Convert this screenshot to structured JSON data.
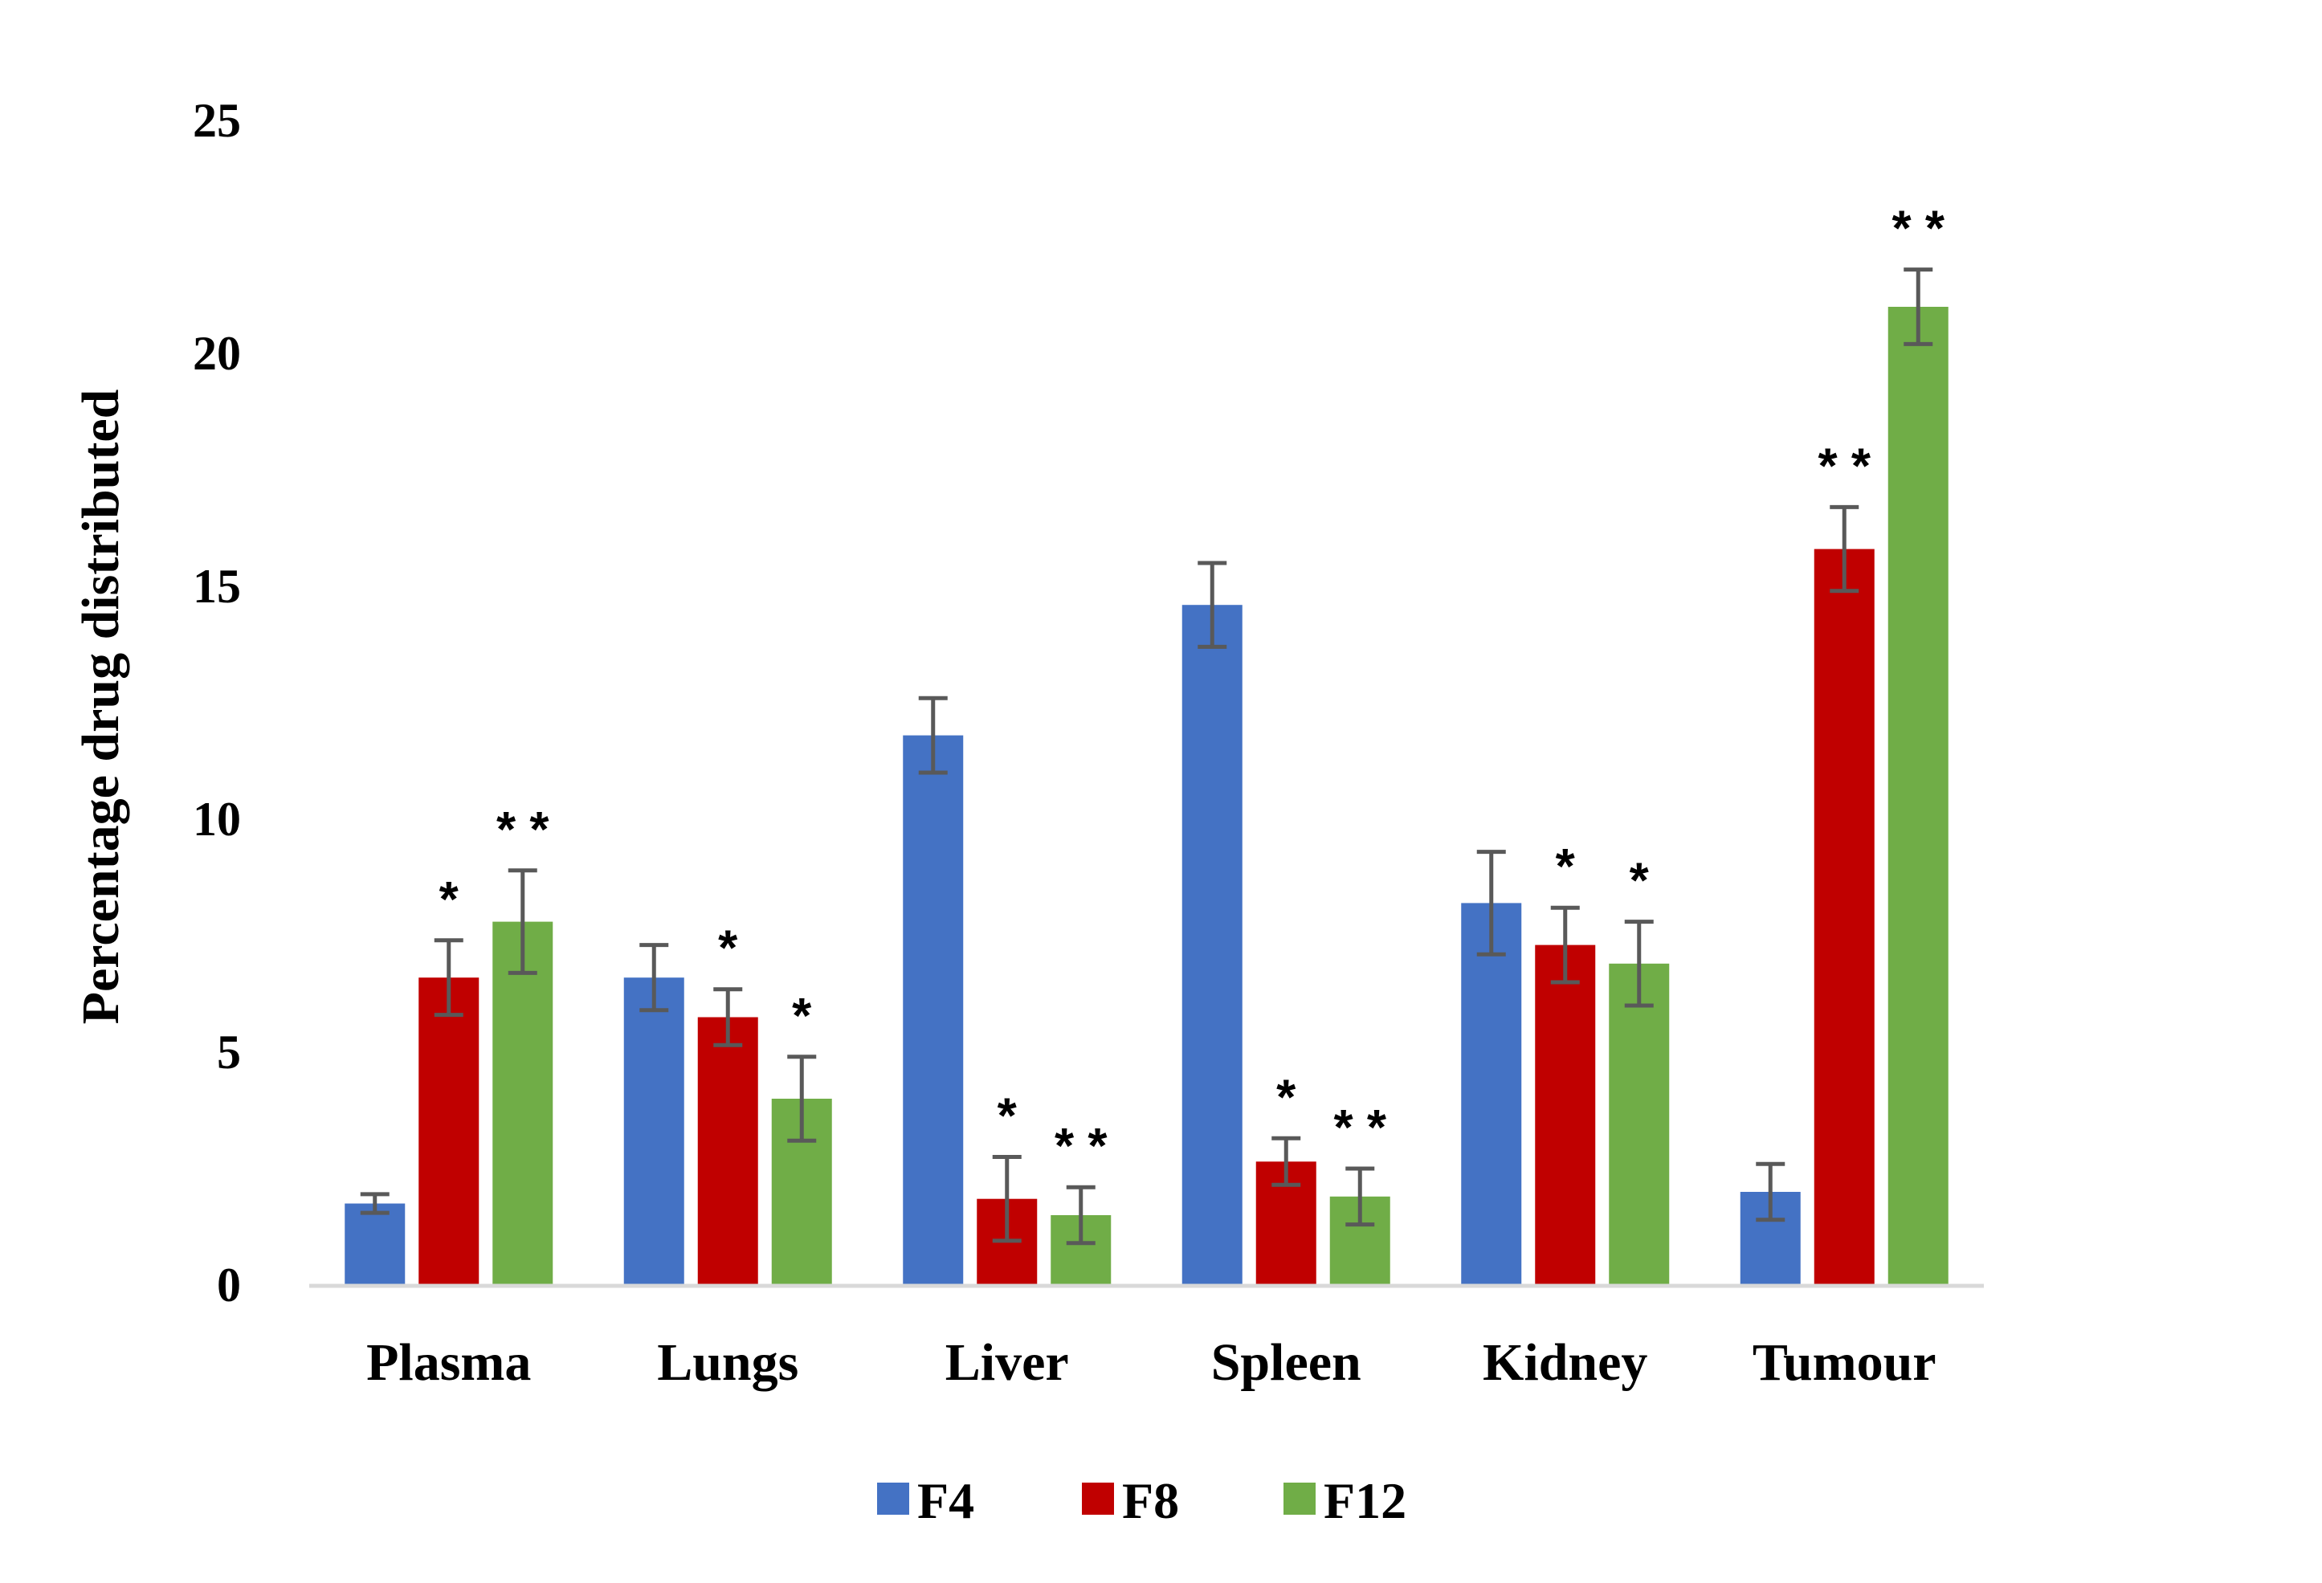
{
  "chart_data": {
    "type": "bar",
    "title": "",
    "xlabel": "",
    "ylabel": "Percentage drug distributed",
    "ylim": [
      0,
      25
    ],
    "yticks": [
      0,
      5,
      10,
      15,
      20,
      25
    ],
    "grid": false,
    "legend": "bottom",
    "categories": [
      "Plasma",
      "Lungs",
      "Liver",
      "Spleen",
      "Kidney",
      "Tumour"
    ],
    "series": [
      {
        "name": "F4",
        "color": "#4472C4",
        "values": [
          1.75,
          6.6,
          11.8,
          14.6,
          8.2,
          2.0
        ],
        "errors": [
          0.2,
          0.7,
          0.8,
          0.9,
          1.1,
          0.6
        ],
        "significance": [
          "",
          "",
          "",
          "",
          "",
          ""
        ]
      },
      {
        "name": "F8",
        "color": "#C00000",
        "values": [
          6.6,
          5.75,
          1.85,
          2.65,
          7.3,
          15.8
        ],
        "errors": [
          0.8,
          0.6,
          0.9,
          0.5,
          0.8,
          0.9
        ],
        "significance": [
          "*",
          "*",
          "*",
          "*",
          "*",
          "**"
        ]
      },
      {
        "name": "F12",
        "color": "#70AD47",
        "values": [
          7.8,
          4.0,
          1.5,
          1.9,
          6.9,
          21.0
        ],
        "errors": [
          1.1,
          0.9,
          0.6,
          0.6,
          0.9,
          0.8
        ],
        "significance": [
          "**",
          "*",
          "**",
          "**",
          "*",
          "**"
        ]
      }
    ]
  }
}
